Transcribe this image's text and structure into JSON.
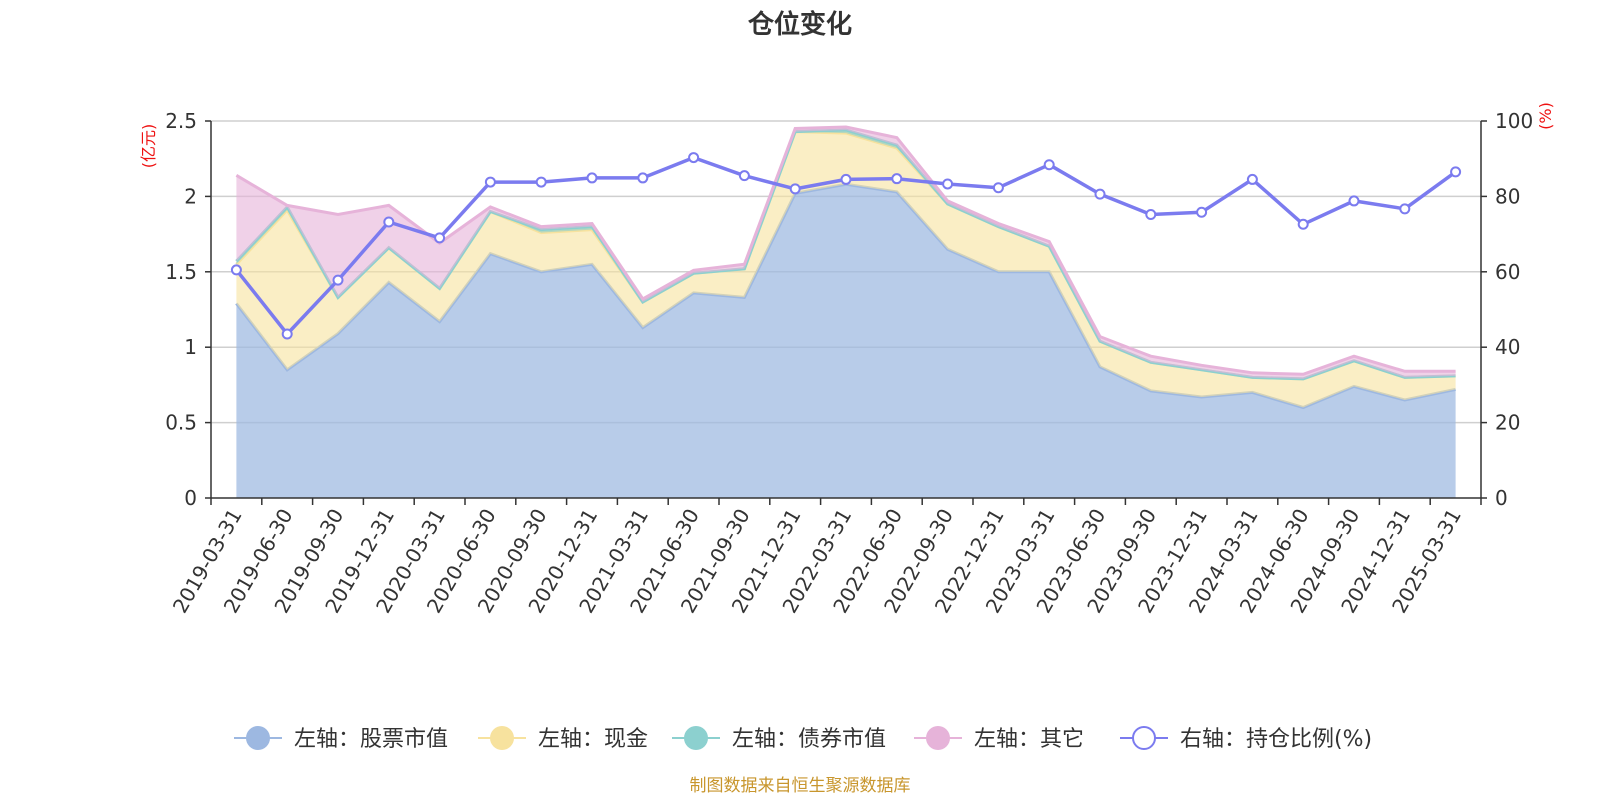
{
  "colors": {
    "stock": "#9db8e1",
    "cash": "#f7e29e",
    "bond": "#8cd0cf",
    "other": "#e6b3d9",
    "ratio": "#7b7bef",
    "unit": "#ee1111",
    "source": "#c8962d"
  },
  "chart_data": {
    "type": "area",
    "title": "仓位变化",
    "left_axis_unit": "(亿元)",
    "right_axis_unit": "(%)",
    "left_ylim": [
      0,
      2.5
    ],
    "right_ylim": [
      0,
      100
    ],
    "left_ticks": [
      "0",
      "0.5",
      "1",
      "1.5",
      "2",
      "2.5"
    ],
    "right_ticks": [
      "0",
      "20",
      "40",
      "60",
      "80",
      "100"
    ],
    "grid": true,
    "legend_position": "bottom",
    "x": [
      "2019-03-31",
      "2019-06-30",
      "2019-09-30",
      "2019-12-31",
      "2020-03-31",
      "2020-06-30",
      "2020-09-30",
      "2020-12-31",
      "2021-03-31",
      "2021-06-30",
      "2021-09-30",
      "2021-12-31",
      "2022-03-31",
      "2022-06-30",
      "2022-09-30",
      "2022-12-31",
      "2023-03-31",
      "2023-06-30",
      "2023-09-30",
      "2023-12-31",
      "2024-03-31",
      "2024-06-30",
      "2024-09-30",
      "2024-12-31",
      "2025-03-31"
    ],
    "series": [
      {
        "name": "左轴：股票市值",
        "axis": "left",
        "kind": "stacked-area",
        "values": [
          1.29,
          0.85,
          1.09,
          1.43,
          1.17,
          1.62,
          1.5,
          1.55,
          1.13,
          1.36,
          1.33,
          2.02,
          2.08,
          2.03,
          1.65,
          1.5,
          1.5,
          0.87,
          0.71,
          0.67,
          0.7,
          0.6,
          0.74,
          0.65,
          0.72
        ]
      },
      {
        "name": "左轴：现金",
        "axis": "left",
        "kind": "stacked-area",
        "values": [
          0.26,
          1.06,
          0.24,
          0.23,
          0.22,
          0.28,
          0.26,
          0.23,
          0.17,
          0.13,
          0.19,
          0.41,
          0.34,
          0.29,
          0.3,
          0.3,
          0.17,
          0.17,
          0.19,
          0.18,
          0.1,
          0.19,
          0.17,
          0.15,
          0.09
        ]
      },
      {
        "name": "左轴：债券市值",
        "axis": "left",
        "kind": "stacked-area",
        "values": [
          0.02,
          0.02,
          0,
          0,
          0,
          0,
          0.02,
          0.02,
          0,
          0,
          0,
          0,
          0.02,
          0.02,
          0,
          0,
          0,
          0,
          0,
          0,
          0,
          0,
          0,
          0,
          0
        ]
      },
      {
        "name": "左轴：其它",
        "axis": "left",
        "kind": "stacked-area",
        "values": [
          0.57,
          0.01,
          0.55,
          0.28,
          0.3,
          0.03,
          0.02,
          0.02,
          0.02,
          0.02,
          0.03,
          0.02,
          0.02,
          0.05,
          0.02,
          0.02,
          0.03,
          0.03,
          0.04,
          0.03,
          0.03,
          0.03,
          0.03,
          0.04,
          0.03
        ]
      },
      {
        "name": "右轴：持仓比例(%)",
        "axis": "right",
        "kind": "line",
        "values": [
          60.5,
          43.5,
          57.8,
          73.2,
          69.0,
          83.8,
          83.8,
          84.9,
          84.9,
          90.3,
          85.5,
          82.0,
          84.5,
          84.7,
          83.3,
          82.3,
          88.4,
          80.6,
          75.2,
          75.8,
          84.5,
          72.6,
          78.8,
          76.7,
          86.5
        ]
      }
    ]
  },
  "legend": [
    {
      "label": "左轴：股票市值",
      "color_key": "stock",
      "marker": "filled"
    },
    {
      "label": "左轴：现金",
      "color_key": "cash",
      "marker": "filled"
    },
    {
      "label": "左轴：债券市值",
      "color_key": "bond",
      "marker": "filled"
    },
    {
      "label": "左轴：其它",
      "color_key": "other",
      "marker": "filled"
    },
    {
      "label": "右轴：持仓比例(%)",
      "color_key": "ratio",
      "marker": "hollow"
    }
  ],
  "source_text": "制图数据来自恒生聚源数据库"
}
